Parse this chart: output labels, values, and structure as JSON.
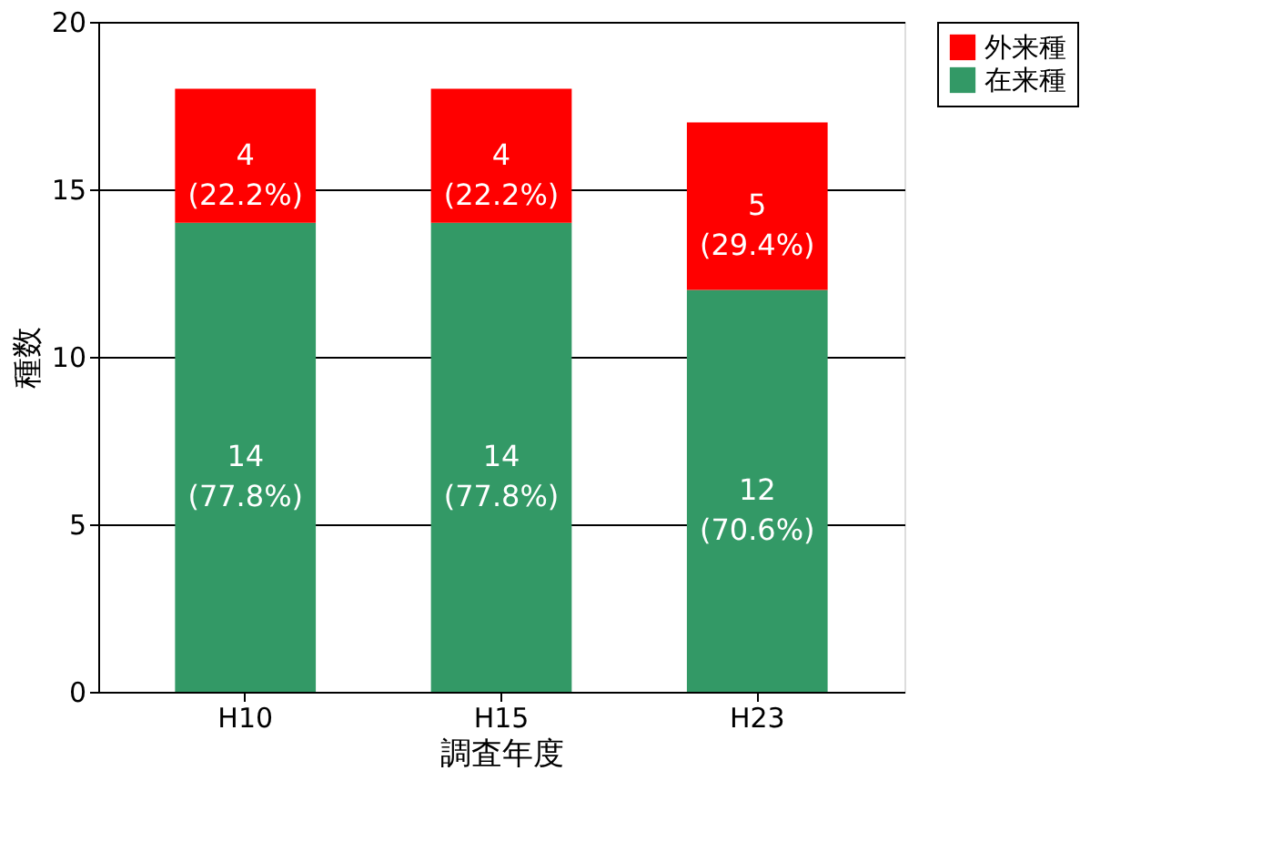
{
  "chart_data": {
    "type": "bar",
    "stacked": true,
    "xlabel": "調査年度",
    "ylabel": "種数",
    "categories": [
      "H10",
      "H15",
      "H23"
    ],
    "series": [
      {
        "name": "在来種",
        "color": "#339966",
        "values": [
          14,
          14,
          12
        ],
        "value_labels": [
          "14\n(77.8%)",
          "14\n(77.8%)",
          "12\n(70.6%)"
        ]
      },
      {
        "name": "外来種",
        "color": "#ff0000",
        "values": [
          4,
          4,
          5
        ],
        "value_labels": [
          "4\n(22.2%)",
          "4\n(22.2%)",
          "5\n(29.4%)"
        ]
      }
    ],
    "ylim": [
      0,
      20
    ],
    "yticks": [
      0,
      5,
      10,
      15,
      20
    ],
    "grid": "y",
    "legend": "right"
  }
}
